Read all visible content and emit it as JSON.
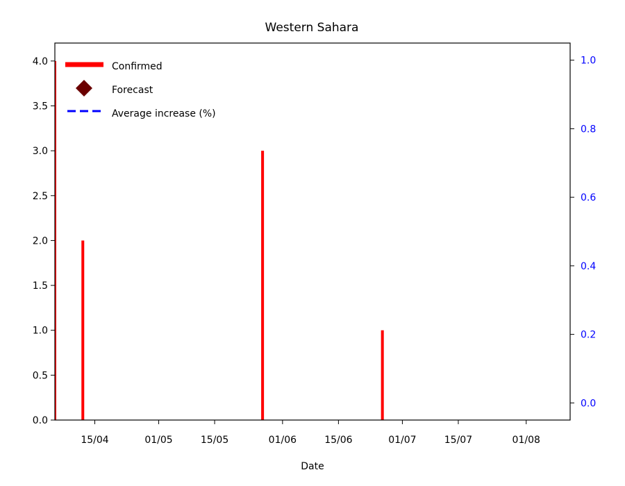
{
  "chart_data": {
    "type": "bar",
    "title": "Western Sahara",
    "xlabel": "Date",
    "ylabel": "",
    "ylabel_right": "",
    "x_tick_labels": [
      "15/04",
      "01/05",
      "15/05",
      "01/06",
      "15/06",
      "01/07",
      "15/07",
      "01/08"
    ],
    "x_tick_dates": [
      "2020-04-15",
      "2020-05-01",
      "2020-05-15",
      "2020-06-01",
      "2020-06-15",
      "2020-07-01",
      "2020-07-15",
      "2020-08-01"
    ],
    "xlim": [
      "2020-04-05",
      "2020-08-12"
    ],
    "ylim": [
      0,
      4.2
    ],
    "y_ticks": [
      "0.0",
      "0.5",
      "1.0",
      "1.5",
      "2.0",
      "2.5",
      "3.0",
      "3.5",
      "4.0"
    ],
    "ylim_right": [
      -0.05,
      1.05
    ],
    "y_ticks_right": [
      "0.0",
      "0.2",
      "0.4",
      "0.6",
      "0.8",
      "1.0"
    ],
    "series": [
      {
        "name": "Confirmed",
        "kind": "bar",
        "color": "#ff0000",
        "points": [
          {
            "date": "2020-04-05",
            "value": 4
          },
          {
            "date": "2020-04-12",
            "value": 2
          },
          {
            "date": "2020-05-27",
            "value": 3
          },
          {
            "date": "2020-06-26",
            "value": 1
          }
        ]
      },
      {
        "name": "Forecast",
        "kind": "marker",
        "marker": "diamond",
        "color": "#6b0000",
        "points": []
      },
      {
        "name": "Average increase (%)",
        "kind": "line",
        "style": "dashed",
        "axis": "right",
        "color": "#0000ff",
        "points": []
      }
    ],
    "legend": {
      "position": "top-left"
    },
    "grid": false
  }
}
